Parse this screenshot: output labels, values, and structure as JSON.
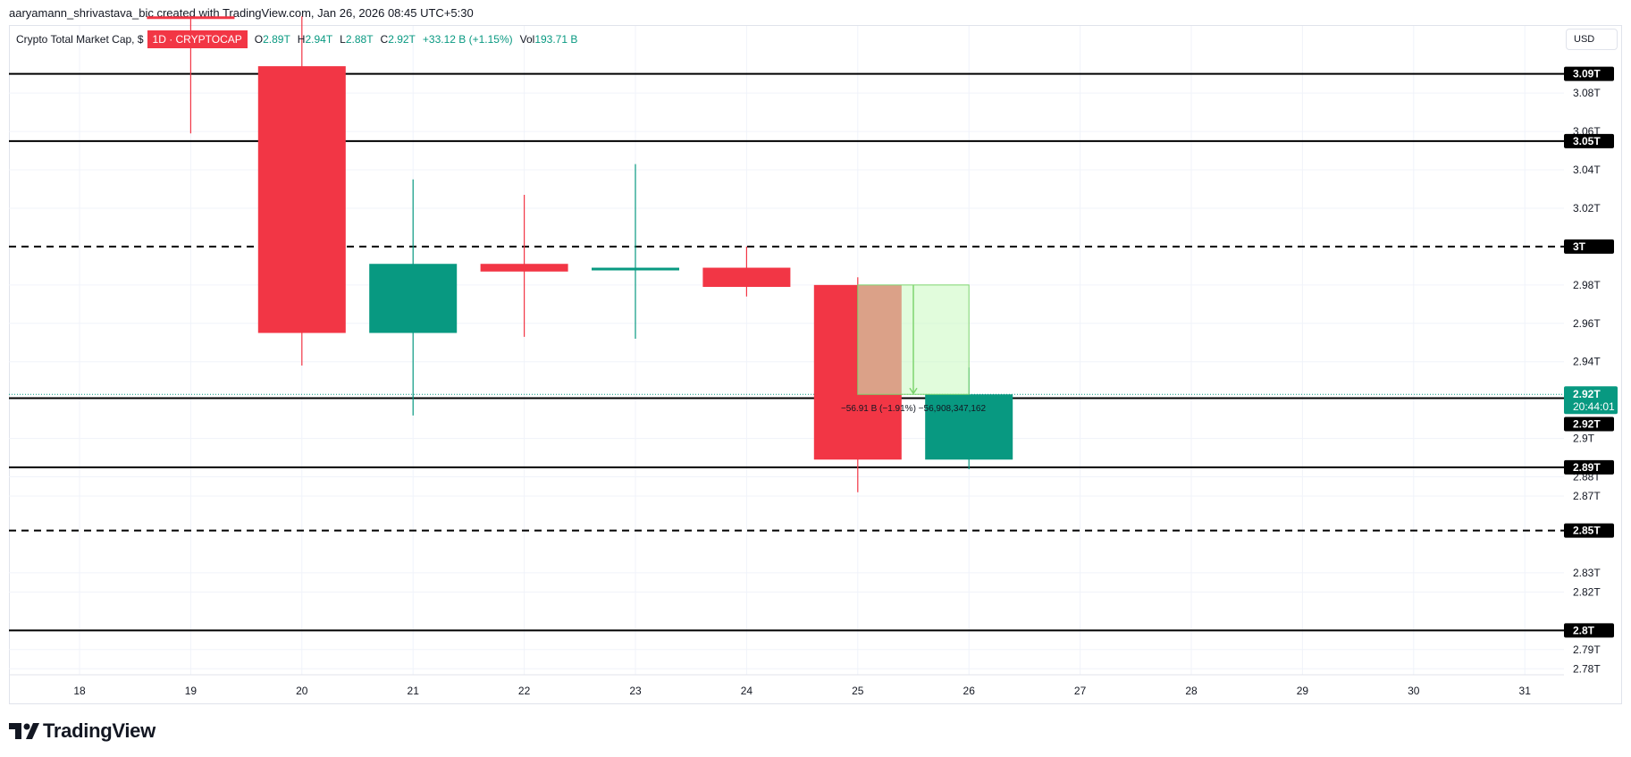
{
  "header": {
    "attribution": "aaryamann_shrivastava_bic created with TradingView.com, Jan 26, 2026 08:45 UTC+5:30"
  },
  "legend": {
    "symbol": "Crypto Total Market Cap, $",
    "interval": "1D · CRYPTOCAP",
    "open_label": "O",
    "open": "2.89T",
    "high_label": "H",
    "high": "2.94T",
    "low_label": "L",
    "low": "2.88T",
    "close_label": "C",
    "close": "2.92T",
    "change": "+33.12 B (+1.15%)",
    "volume_label": "Vol",
    "volume": "193.71 B"
  },
  "currency": "USD",
  "branding": {
    "logo_text": "TradingView"
  },
  "colors": {
    "up": "#089981",
    "down": "#f23645",
    "grid": "#f0f3fa",
    "axis_text": "#131722",
    "hline": "#000000",
    "measure_fill": "#c8fac0",
    "measure_stroke": "#7ed56f"
  },
  "chart_data": {
    "type": "candlestick",
    "x_axis": {
      "ticks": [
        "18",
        "19",
        "20",
        "21",
        "22",
        "23",
        "24",
        "25",
        "26",
        "27",
        "28",
        "29",
        "30",
        "31"
      ]
    },
    "y_axis": {
      "range": [
        2.775,
        3.115
      ],
      "unit": "T",
      "ticks": [
        {
          "value": 2.78,
          "label": "2.78T"
        },
        {
          "value": 2.79,
          "label": "2.79T"
        },
        {
          "value": 2.82,
          "label": "2.82T"
        },
        {
          "value": 2.83,
          "label": "2.83T"
        },
        {
          "value": 2.87,
          "label": "2.87T"
        },
        {
          "value": 2.88,
          "label": "2.88T"
        },
        {
          "value": 2.9,
          "label": "2.9T"
        },
        {
          "value": 2.94,
          "label": "2.94T"
        },
        {
          "value": 2.96,
          "label": "2.96T"
        },
        {
          "value": 2.98,
          "label": "2.98T"
        },
        {
          "value": 3.02,
          "label": "3.02T"
        },
        {
          "value": 3.04,
          "label": "3.04T"
        },
        {
          "value": 3.06,
          "label": "3.06T"
        },
        {
          "value": 3.08,
          "label": "3.08T"
        }
      ]
    },
    "candles": [
      {
        "date": "19",
        "open": 3.12,
        "high": 3.12,
        "low": 3.059,
        "close": 3.12,
        "direction": "down"
      },
      {
        "date": "20",
        "open": 3.094,
        "high": 3.12,
        "low": 2.938,
        "close": 2.955,
        "direction": "down"
      },
      {
        "date": "21",
        "open": 2.955,
        "high": 3.035,
        "low": 2.912,
        "close": 2.991,
        "direction": "up"
      },
      {
        "date": "22",
        "open": 2.991,
        "high": 3.027,
        "low": 2.953,
        "close": 2.987,
        "direction": "down"
      },
      {
        "date": "23",
        "open": 2.988,
        "high": 3.043,
        "low": 2.952,
        "close": 2.989,
        "direction": "up"
      },
      {
        "date": "24",
        "open": 2.989,
        "high": 3.0,
        "low": 2.974,
        "close": 2.979,
        "direction": "down"
      },
      {
        "date": "25",
        "open": 2.98,
        "high": 2.984,
        "low": 2.872,
        "close": 2.889,
        "direction": "down"
      },
      {
        "date": "26",
        "open": 2.889,
        "high": 2.937,
        "low": 2.884,
        "close": 2.923,
        "direction": "up"
      }
    ],
    "horizontal_lines": [
      {
        "value": 3.09,
        "label": "3.09T",
        "style": "solid"
      },
      {
        "value": 3.055,
        "label": "3.05T",
        "style": "solid"
      },
      {
        "value": 3.0,
        "label": "3T",
        "style": "dashed"
      },
      {
        "value": 2.921,
        "label": "2.92T",
        "style": "solid"
      },
      {
        "value": 2.885,
        "label": "2.89T",
        "style": "solid"
      },
      {
        "value": 2.852,
        "label": "2.85T",
        "style": "dashed"
      },
      {
        "value": 2.8,
        "label": "2.8T",
        "style": "solid"
      }
    ],
    "last_price": {
      "value": 2.923,
      "label": "2.92T",
      "countdown": "20:44:01"
    },
    "measure": {
      "from_date": "25",
      "to_date": "26",
      "from_value": 2.98,
      "to_value": 2.923,
      "label": "−56.91 B (−1.91%) −56,908,347,162"
    }
  }
}
